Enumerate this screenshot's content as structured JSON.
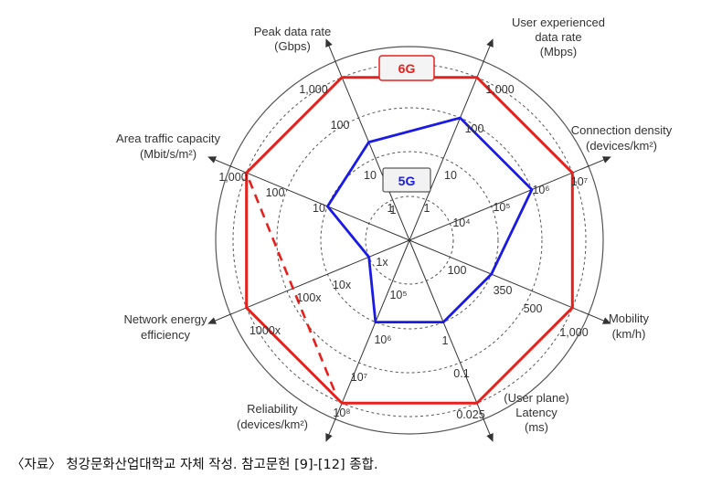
{
  "chart_data": {
    "type": "radar",
    "series": [
      {
        "name": "6G",
        "color": "#e8201c",
        "values": {
          "peak_data_rate": 4,
          "user_exp_rate": 4,
          "conn_density": 4,
          "mobility": 4,
          "latency": 4,
          "reliability": 4,
          "energy_eff": 4,
          "area_capacity": 4
        }
      },
      {
        "name": "5G",
        "color": "#1a1ae6",
        "values": {
          "peak_data_rate": 2.4,
          "user_exp_rate": 3,
          "conn_density": 3,
          "mobility": 2,
          "latency": 2,
          "reliability": 2,
          "energy_eff": 1,
          "area_capacity": 2
        }
      }
    ],
    "dashed_series": {
      "name": "",
      "color": "#e8201c",
      "from": "area_capacity",
      "to": "reliability"
    },
    "axes": [
      {
        "id": "peak_data_rate",
        "title": [
          "Peak data rate",
          "(Gbps)"
        ],
        "ticks": [
          "1",
          "10",
          "100",
          "1,000"
        ]
      },
      {
        "id": "user_exp_rate",
        "title": [
          "User experienced",
          "data rate",
          "(Mbps)"
        ],
        "ticks": [
          "1",
          "10",
          "100",
          "1,000"
        ]
      },
      {
        "id": "conn_density",
        "title": [
          "Connection density",
          "(devices/km²)"
        ],
        "ticks": [
          "10⁴",
          "10⁵",
          "10⁶",
          "10⁷"
        ]
      },
      {
        "id": "mobility",
        "title": [
          "Mobility",
          "(km/h)"
        ],
        "ticks": [
          "100",
          "350",
          "500",
          "1,000"
        ]
      },
      {
        "id": "latency",
        "title": [
          "(User plane)",
          "Latency",
          "(ms)"
        ],
        "ticks": [
          "1",
          "0.1",
          "0.025"
        ]
      },
      {
        "id": "reliability",
        "title": [
          "Reliability",
          "(devices/km²)"
        ],
        "ticks": [
          "10⁵",
          "10⁶",
          "10⁷",
          "10⁸"
        ]
      },
      {
        "id": "energy_eff",
        "title": [
          "Network energy",
          "efficiency"
        ],
        "ticks": [
          "1x",
          "10x",
          "100x",
          "1000x"
        ]
      },
      {
        "id": "area_capacity",
        "title": [
          "Area traffic capacity",
          "(Mbit/s/m²)"
        ],
        "ticks": [
          "1",
          "10",
          "100",
          "1,000"
        ]
      }
    ],
    "rings": 4,
    "grid": true,
    "colors": {
      "6G": "#e8201c",
      "5G": "#1a1ae6",
      "grid": "#555555"
    },
    "legend": {
      "6G": "6G",
      "5G": "5G"
    }
  },
  "source_note": "〈자료〉 청강문화산업대학교 자체 작성. 참고문헌 [9]-[12] 종합."
}
